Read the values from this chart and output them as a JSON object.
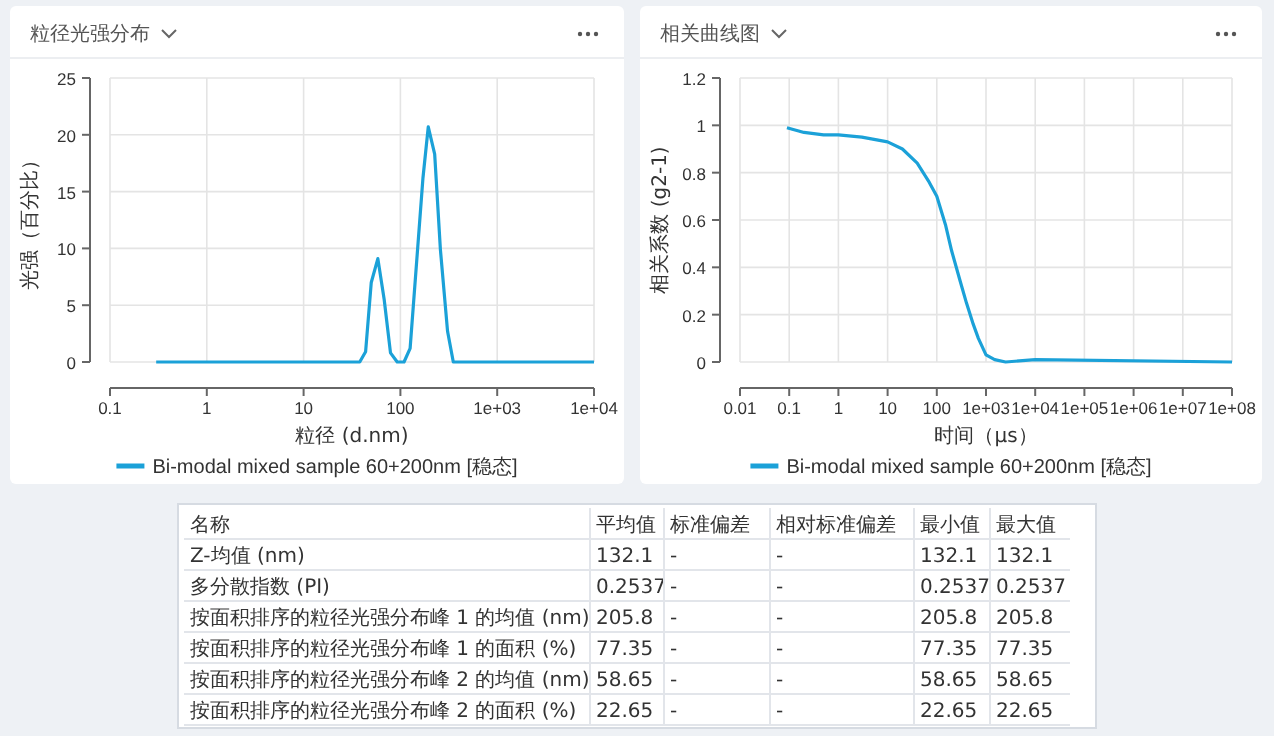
{
  "chart_data": [
    {
      "type": "line",
      "title": "粒径光强分布",
      "xlabel": "粒径 (d.nm)",
      "ylabel": "光强（百分比）",
      "log": "x",
      "grid": true,
      "legend": "bottom",
      "marker": "none",
      "line_style": "solid",
      "xlim": [
        0.1,
        10000
      ],
      "xticks": [
        0.1,
        1,
        10,
        100,
        {
          "value": 1000,
          "label": "1e+03"
        },
        {
          "value": 10000,
          "label": "1e+04"
        }
      ],
      "ylim": [
        0,
        25
      ],
      "yticks": [
        0,
        5,
        10,
        15,
        20,
        25
      ],
      "series": [
        {
          "name": "Bi-modal mixed sample 60+200nm [稳态]",
          "color": "#1ba1d8",
          "x": [
            0.3,
            38,
            43.7,
            50,
            58.5,
            68,
            79,
            92.7,
            109,
            126,
            171,
            194,
            226,
            259,
            307,
            352,
            10000
          ],
          "values": [
            0,
            0,
            0.9,
            7,
            9.1,
            5.5,
            0.8,
            0,
            0,
            1.2,
            16.2,
            20.7,
            18.3,
            9.9,
            2.7,
            0,
            0
          ]
        }
      ]
    },
    {
      "type": "line",
      "title": "相关曲线图",
      "xlabel": "时间（μs）",
      "ylabel": "相关系数 (g2-1)",
      "log": "x",
      "grid": true,
      "legend": "bottom",
      "marker": "none",
      "line_style": "solid",
      "xlim": [
        0.01,
        100000000
      ],
      "xticks": [
        0.01,
        0.1,
        1,
        10,
        100,
        {
          "value": 1000,
          "label": "1e+03"
        },
        {
          "value": 10000,
          "label": "1e+04"
        },
        {
          "value": 100000,
          "label": "1e+05"
        },
        {
          "value": 1000000,
          "label": "1e+06"
        },
        {
          "value": 10000000,
          "label": "1e+07"
        },
        {
          "value": 100000000,
          "label": "1e+08"
        }
      ],
      "ylim": [
        0,
        1.2
      ],
      "yticks": [
        0,
        0.2,
        0.4,
        0.6,
        0.8,
        1,
        1.2
      ],
      "series": [
        {
          "name": "Bi-modal mixed sample 60+200nm [稳态]",
          "color": "#1ba1d8",
          "x": [
            0.09,
            0.2,
            0.5,
            1,
            3,
            10,
            20,
            40,
            70,
            100,
            150,
            200,
            300,
            400,
            550,
            700,
            1000,
            1500,
            2500,
            10000,
            100000000
          ],
          "values": [
            0.99,
            0.97,
            0.96,
            0.96,
            0.95,
            0.93,
            0.9,
            0.84,
            0.76,
            0.7,
            0.58,
            0.47,
            0.34,
            0.25,
            0.16,
            0.1,
            0.03,
            0.01,
            0,
            0.01,
            0
          ]
        }
      ]
    },
    {
      "type": "other",
      "annotations": [
        "名称"
      ],
      "data_labels": true,
      "categories": [
        "Z-均值 (nm)",
        "多分散指数 (PI)",
        "按面积排序的粒径光强分布峰 1 的均值 (nm)",
        "按面积排序的粒径光强分布峰 1 的面积 (%)",
        "按面积排序的粒径光强分布峰 2 的均值 (nm)",
        "按面积排序的粒径光强分布峰 2 的面积 (%)"
      ],
      "series": [
        {
          "name": "平均值",
          "values": [
            132.1,
            0.2537,
            205.8,
            77.35,
            58.65,
            22.65
          ]
        },
        {
          "name": "标准偏差",
          "values": [
            null,
            null,
            null,
            null,
            null,
            null
          ],
          "value_labels": [
            "-",
            "-",
            "-",
            "-",
            "-",
            "-"
          ]
        },
        {
          "name": "相对标准偏差",
          "values": [
            null,
            null,
            null,
            null,
            null,
            null
          ],
          "value_labels": [
            "-",
            "-",
            "-",
            "-",
            "-",
            "-"
          ]
        },
        {
          "name": "最小值",
          "values": [
            132.1,
            0.2537,
            205.8,
            77.35,
            58.65,
            22.65
          ]
        },
        {
          "name": "最大值",
          "values": [
            132.1,
            0.2537,
            205.8,
            77.35,
            58.65,
            22.65
          ]
        }
      ]
    }
  ]
}
